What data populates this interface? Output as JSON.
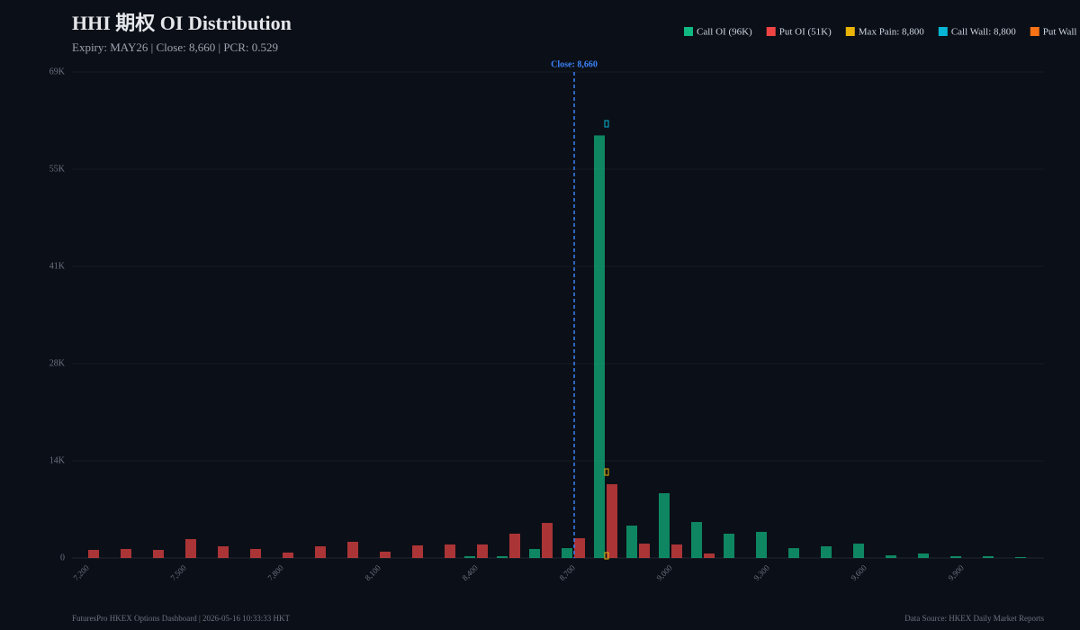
{
  "chart_data": {
    "type": "bar",
    "title": "HHI 期权 OI Distribution",
    "subtitle": "Expiry: MAY26 | Close: 8,660 | PCR: 0.529",
    "close_label": "Close: 8,660",
    "footer_left": "FuturesPro HKEX Options Dashboard | 2026-05-16 10:33:33 HKT",
    "footer_right": "Data Source: HKEX Daily Market Reports",
    "categories": [
      "7,200",
      null,
      null,
      "7,500",
      null,
      null,
      "7,800",
      null,
      null,
      "8,100",
      null,
      null,
      "8,400",
      null,
      null,
      "8,700",
      null,
      null,
      "9,000",
      null,
      null,
      "9,300",
      null,
      null,
      "9,600",
      null,
      null,
      "9,900",
      null,
      null
    ],
    "series": [
      {
        "name": "Call OI (96K)",
        "color": "#10b981",
        "values": [
          0,
          0,
          0,
          0,
          0,
          0,
          0,
          0,
          0,
          0,
          0,
          0,
          260,
          260,
          1280,
          1400,
          60000,
          4600,
          9200,
          5110,
          3450,
          3710,
          1400,
          1660,
          2040,
          380,
          640,
          260,
          260,
          130
        ]
      },
      {
        "name": "Put OI (51K)",
        "color": "#ef4444",
        "values": [
          1150,
          1280,
          1150,
          2680,
          1660,
          1280,
          770,
          1660,
          2300,
          900,
          1790,
          1920,
          1920,
          3450,
          4980,
          2810,
          10480,
          2040,
          1920,
          640,
          0,
          0,
          0,
          0,
          0,
          0,
          0,
          0,
          0,
          0
        ]
      }
    ],
    "legend_extra": [
      {
        "label": "Max Pain: 8,800",
        "color": "#eab308"
      },
      {
        "label": "Call Wall: 8,800",
        "color": "#06b6d4"
      },
      {
        "label": "Put Wall",
        "color": "#f97316"
      }
    ],
    "ylim": [
      0,
      69000
    ],
    "yticks": [
      0,
      {
        "value": 13800,
        "label": "14K"
      },
      {
        "value": 27600,
        "label": "28K"
      },
      {
        "value": 41400,
        "label": "41K"
      },
      {
        "value": 55200,
        "label": "55K"
      },
      {
        "value": 69000,
        "label": "69K"
      }
    ],
    "grid": true
  }
}
